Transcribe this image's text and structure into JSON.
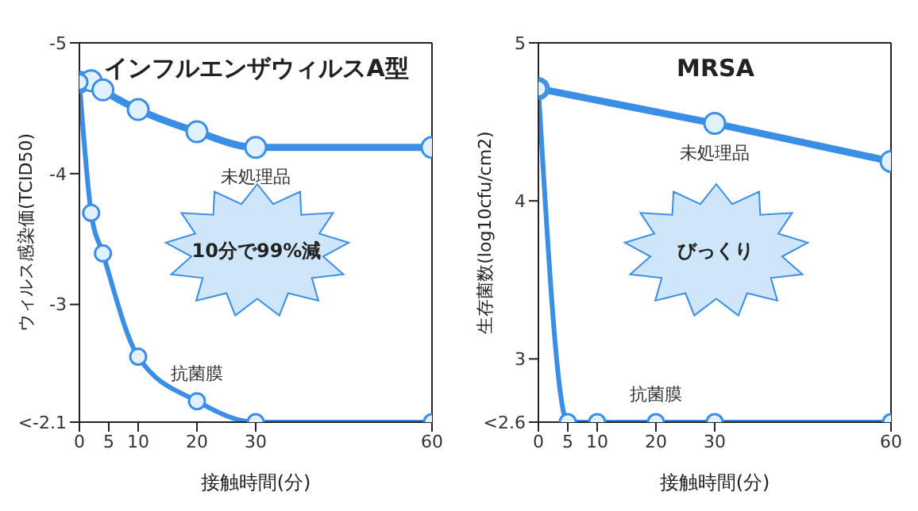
{
  "chart_data": [
    {
      "type": "line",
      "title": "インフルエンザウィルスA型",
      "xlabel": "接触時間(分)",
      "ylabel": "ウィルス感染価(TCID50)",
      "xlim": [
        0,
        60
      ],
      "xticks": [
        0,
        5,
        10,
        20,
        30,
        60
      ],
      "ylim": [
        -2.1,
        -5
      ],
      "yticks": [
        -5,
        -4,
        -3,
        {
          "value": -2.1,
          "label": "<-2.1"
        }
      ],
      "series": [
        {
          "name": "未処理品",
          "color": "#3a8ee6",
          "x": [
            0,
            2,
            4,
            10,
            20,
            30,
            60
          ],
          "values": [
            -4.7,
            -4.71,
            -4.64,
            -4.49,
            -4.32,
            -4.2,
            -4.2
          ]
        },
        {
          "name": "抗菌膜",
          "color": "#3a8ee6",
          "x": [
            0,
            2,
            4,
            10,
            20,
            30,
            60
          ],
          "values": [
            -4.7,
            -3.7,
            -3.39,
            -2.6,
            -2.26,
            -2.1,
            -2.1
          ]
        }
      ],
      "marker": "circle",
      "line_style": "solid",
      "grid": false,
      "legend": false,
      "annotations": [
        "10分で99%減"
      ]
    },
    {
      "type": "line",
      "title": "MRSA",
      "xlabel": "接触時間(分)",
      "ylabel": "生存菌数(log10cfu/cm2)",
      "xlim": [
        0,
        60
      ],
      "xticks": [
        0,
        5,
        10,
        20,
        30,
        60
      ],
      "ylim": [
        2.6,
        5
      ],
      "yticks": [
        5,
        4,
        3,
        {
          "value": 2.6,
          "label": "<2.6"
        }
      ],
      "series": [
        {
          "name": "未処理品",
          "color": "#3a8ee6",
          "x": [
            0,
            30,
            60
          ],
          "values": [
            4.71,
            4.49,
            4.25
          ]
        },
        {
          "name": "抗菌膜",
          "color": "#3a8ee6",
          "x": [
            0,
            5,
            10,
            20,
            30,
            60
          ],
          "values": [
            4.71,
            2.6,
            2.6,
            2.6,
            2.6,
            2.6
          ]
        }
      ],
      "marker": "circle",
      "line_style": "solid",
      "grid": false,
      "legend": false,
      "annotations": [
        "びっくり"
      ]
    }
  ]
}
